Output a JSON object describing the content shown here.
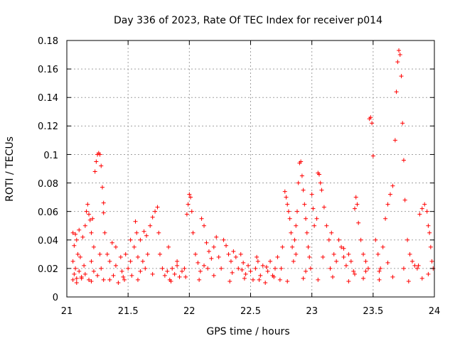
{
  "chart_data": {
    "type": "scatter",
    "title": "Day 336 of 2023, Rate Of TEC Index for receiver p014",
    "xlabel": "GPS time / hours",
    "ylabel": "ROTI / TECUs",
    "xlim": [
      21,
      24
    ],
    "ylim": [
      0,
      0.18
    ],
    "x_ticks": [
      "21",
      "21.5",
      "22",
      "22.5",
      "23",
      "23.5",
      "24"
    ],
    "y_ticks": [
      "0",
      "0.02",
      "0.04",
      "0.06",
      "0.08",
      "0.1",
      "0.12",
      "0.14",
      "0.16",
      "0.18"
    ],
    "grid": true,
    "marker": "+",
    "color": "#ff0000",
    "series": [
      {
        "name": "ROTI",
        "points": [
          [
            21.05,
            0.012
          ],
          [
            21.05,
            0.025
          ],
          [
            21.05,
            0.045
          ],
          [
            21.06,
            0.036
          ],
          [
            21.06,
            0.016
          ],
          [
            21.07,
            0.02
          ],
          [
            21.07,
            0.044
          ],
          [
            21.08,
            0.04
          ],
          [
            21.08,
            0.01
          ],
          [
            21.09,
            0.03
          ],
          [
            21.1,
            0.018
          ],
          [
            21.1,
            0.047
          ],
          [
            21.11,
            0.028
          ],
          [
            21.12,
            0.013
          ],
          [
            21.13,
            0.042
          ],
          [
            21.14,
            0.022
          ],
          [
            21.15,
            0.05
          ],
          [
            21.16,
            0.06
          ],
          [
            21.17,
            0.065
          ],
          [
            21.18,
            0.058
          ],
          [
            21.19,
            0.054
          ],
          [
            21.2,
            0.045
          ],
          [
            21.2,
            0.025
          ],
          [
            21.21,
            0.055
          ],
          [
            21.22,
            0.035
          ],
          [
            21.23,
            0.088
          ],
          [
            21.24,
            0.095
          ],
          [
            21.25,
            0.1
          ],
          [
            21.26,
            0.101
          ],
          [
            21.27,
            0.1
          ],
          [
            21.28,
            0.092
          ],
          [
            21.29,
            0.077
          ],
          [
            21.3,
            0.066
          ],
          [
            21.3,
            0.059
          ],
          [
            21.31,
            0.045
          ],
          [
            21.12,
            0.014
          ],
          [
            21.15,
            0.016
          ],
          [
            21.18,
            0.012
          ],
          [
            21.22,
            0.018
          ],
          [
            21.25,
            0.015
          ],
          [
            21.28,
            0.02
          ],
          [
            21.3,
            0.012
          ],
          [
            21.33,
            0.03
          ],
          [
            21.35,
            0.025
          ],
          [
            21.37,
            0.038
          ],
          [
            21.38,
            0.015
          ],
          [
            21.4,
            0.022
          ],
          [
            21.42,
            0.01
          ],
          [
            21.44,
            0.028
          ],
          [
            21.45,
            0.018
          ],
          [
            21.47,
            0.012
          ],
          [
            21.48,
            0.03
          ],
          [
            21.5,
            0.02
          ],
          [
            21.52,
            0.025
          ],
          [
            21.53,
            0.015
          ],
          [
            21.55,
            0.035
          ],
          [
            21.56,
            0.053
          ],
          [
            21.57,
            0.045
          ],
          [
            21.58,
            0.028
          ],
          [
            21.6,
            0.04
          ],
          [
            21.62,
            0.025
          ],
          [
            21.63,
            0.046
          ],
          [
            21.64,
            0.02
          ],
          [
            21.65,
            0.043
          ],
          [
            21.66,
            0.03
          ],
          [
            21.68,
            0.05
          ],
          [
            21.7,
            0.056
          ],
          [
            21.72,
            0.06
          ],
          [
            21.74,
            0.063
          ],
          [
            21.75,
            0.045
          ],
          [
            21.76,
            0.03
          ],
          [
            21.78,
            0.02
          ],
          [
            21.8,
            0.015
          ],
          [
            21.82,
            0.018
          ],
          [
            21.84,
            0.012
          ],
          [
            21.86,
            0.02
          ],
          [
            21.88,
            0.016
          ],
          [
            21.9,
            0.022
          ],
          [
            21.92,
            0.014
          ],
          [
            21.94,
            0.018
          ],
          [
            21.96,
            0.02
          ],
          [
            21.98,
            0.058
          ],
          [
            21.99,
            0.065
          ],
          [
            22.0,
            0.072
          ],
          [
            22.01,
            0.07
          ],
          [
            22.02,
            0.06
          ],
          [
            22.03,
            0.045
          ],
          [
            22.05,
            0.03
          ],
          [
            22.07,
            0.024
          ],
          [
            22.09,
            0.018
          ],
          [
            22.1,
            0.055
          ],
          [
            22.12,
            0.05
          ],
          [
            22.14,
            0.038
          ],
          [
            22.16,
            0.032
          ],
          [
            22.18,
            0.027
          ],
          [
            22.2,
            0.035
          ],
          [
            22.22,
            0.042
          ],
          [
            22.24,
            0.028
          ],
          [
            22.26,
            0.02
          ],
          [
            22.28,
            0.04
          ],
          [
            22.3,
            0.036
          ],
          [
            22.32,
            0.03
          ],
          [
            22.34,
            0.025
          ],
          [
            22.36,
            0.032
          ],
          [
            22.38,
            0.028
          ],
          [
            22.4,
            0.02
          ],
          [
            22.42,
            0.03
          ],
          [
            22.44,
            0.024
          ],
          [
            22.46,
            0.016
          ],
          [
            22.48,
            0.022
          ],
          [
            22.5,
            0.018
          ],
          [
            22.52,
            0.012
          ],
          [
            22.54,
            0.02
          ],
          [
            22.56,
            0.025
          ],
          [
            22.58,
            0.015
          ],
          [
            22.6,
            0.022
          ],
          [
            22.62,
            0.01
          ],
          [
            22.64,
            0.018
          ],
          [
            22.66,
            0.025
          ],
          [
            22.68,
            0.015
          ],
          [
            22.7,
            0.02
          ],
          [
            22.72,
            0.028
          ],
          [
            22.74,
            0.012
          ],
          [
            22.76,
            0.035
          ],
          [
            22.78,
            0.074
          ],
          [
            22.79,
            0.07
          ],
          [
            22.8,
            0.065
          ],
          [
            22.81,
            0.06
          ],
          [
            22.82,
            0.055
          ],
          [
            22.83,
            0.045
          ],
          [
            22.84,
            0.035
          ],
          [
            22.85,
            0.025
          ],
          [
            22.86,
            0.04
          ],
          [
            22.87,
            0.05
          ],
          [
            22.88,
            0.06
          ],
          [
            22.89,
            0.08
          ],
          [
            22.9,
            0.094
          ],
          [
            22.91,
            0.095
          ],
          [
            22.92,
            0.085
          ],
          [
            22.93,
            0.075
          ],
          [
            22.94,
            0.065
          ],
          [
            22.95,
            0.055
          ],
          [
            22.96,
            0.045
          ],
          [
            22.97,
            0.035
          ],
          [
            22.98,
            0.028
          ],
          [
            22.99,
            0.02
          ],
          [
            23.0,
            0.072
          ],
          [
            23.01,
            0.062
          ],
          [
            23.02,
            0.05
          ],
          [
            23.04,
            0.055
          ],
          [
            23.05,
            0.087
          ],
          [
            23.06,
            0.086
          ],
          [
            23.07,
            0.08
          ],
          [
            23.08,
            0.075
          ],
          [
            23.1,
            0.063
          ],
          [
            23.12,
            0.05
          ],
          [
            23.14,
            0.04
          ],
          [
            23.16,
            0.045
          ],
          [
            23.18,
            0.03
          ],
          [
            23.2,
            0.025
          ],
          [
            23.22,
            0.04
          ],
          [
            23.24,
            0.035
          ],
          [
            23.26,
            0.028
          ],
          [
            23.28,
            0.022
          ],
          [
            23.3,
            0.03
          ],
          [
            23.32,
            0.025
          ],
          [
            23.34,
            0.018
          ],
          [
            23.35,
            0.062
          ],
          [
            23.36,
            0.07
          ],
          [
            23.37,
            0.065
          ],
          [
            23.38,
            0.052
          ],
          [
            23.4,
            0.04
          ],
          [
            23.42,
            0.03
          ],
          [
            23.44,
            0.025
          ],
          [
            23.46,
            0.02
          ],
          [
            23.47,
            0.125
          ],
          [
            23.48,
            0.126
          ],
          [
            23.49,
            0.122
          ],
          [
            23.5,
            0.099
          ],
          [
            23.52,
            0.04
          ],
          [
            23.54,
            0.03
          ],
          [
            23.56,
            0.02
          ],
          [
            23.58,
            0.035
          ],
          [
            23.6,
            0.055
          ],
          [
            23.62,
            0.065
          ],
          [
            23.64,
            0.072
          ],
          [
            23.66,
            0.078
          ],
          [
            23.68,
            0.11
          ],
          [
            23.69,
            0.144
          ],
          [
            23.7,
            0.165
          ],
          [
            23.71,
            0.173
          ],
          [
            23.72,
            0.17
          ],
          [
            23.73,
            0.155
          ],
          [
            23.74,
            0.122
          ],
          [
            23.75,
            0.096
          ],
          [
            23.76,
            0.068
          ],
          [
            23.78,
            0.04
          ],
          [
            23.8,
            0.03
          ],
          [
            23.82,
            0.025
          ],
          [
            23.84,
            0.022
          ],
          [
            23.86,
            0.02
          ],
          [
            23.88,
            0.058
          ],
          [
            23.9,
            0.062
          ],
          [
            23.92,
            0.065
          ],
          [
            23.94,
            0.06
          ],
          [
            23.95,
            0.05
          ],
          [
            23.96,
            0.045
          ],
          [
            23.97,
            0.035
          ],
          [
            23.98,
            0.025
          ],
          [
            23.99,
            0.02
          ],
          [
            21.08,
            0.013
          ],
          [
            21.2,
            0.011
          ],
          [
            21.35,
            0.012
          ],
          [
            21.46,
            0.014
          ],
          [
            21.58,
            0.012
          ],
          [
            21.7,
            0.016
          ],
          [
            21.85,
            0.011
          ],
          [
            21.97,
            0.014
          ],
          [
            22.08,
            0.012
          ],
          [
            22.2,
            0.015
          ],
          [
            22.33,
            0.011
          ],
          [
            22.45,
            0.013
          ],
          [
            22.57,
            0.012
          ],
          [
            22.69,
            0.014
          ],
          [
            22.8,
            0.011
          ],
          [
            22.93,
            0.013
          ],
          [
            23.05,
            0.012
          ],
          [
            23.17,
            0.014
          ],
          [
            23.3,
            0.011
          ],
          [
            23.42,
            0.013
          ],
          [
            23.55,
            0.012
          ],
          [
            23.66,
            0.014
          ],
          [
            23.79,
            0.011
          ],
          [
            23.9,
            0.013
          ],
          [
            21.4,
            0.035
          ],
          [
            21.6,
            0.018
          ],
          [
            21.9,
            0.025
          ],
          [
            22.15,
            0.02
          ],
          [
            22.35,
            0.017
          ],
          [
            22.55,
            0.028
          ],
          [
            22.75,
            0.02
          ],
          [
            22.95,
            0.018
          ],
          [
            23.15,
            0.02
          ],
          [
            23.35,
            0.016
          ],
          [
            23.55,
            0.018
          ],
          [
            23.75,
            0.02
          ],
          [
            23.95,
            0.016
          ],
          [
            21.27,
            0.03
          ],
          [
            21.52,
            0.04
          ],
          [
            21.83,
            0.035
          ],
          [
            22.12,
            0.022
          ],
          [
            22.43,
            0.019
          ],
          [
            22.63,
            0.021
          ],
          [
            22.87,
            0.03
          ],
          [
            23.09,
            0.028
          ],
          [
            23.26,
            0.034
          ],
          [
            23.44,
            0.018
          ],
          [
            23.62,
            0.024
          ],
          [
            23.87,
            0.022
          ]
        ]
      }
    ]
  }
}
